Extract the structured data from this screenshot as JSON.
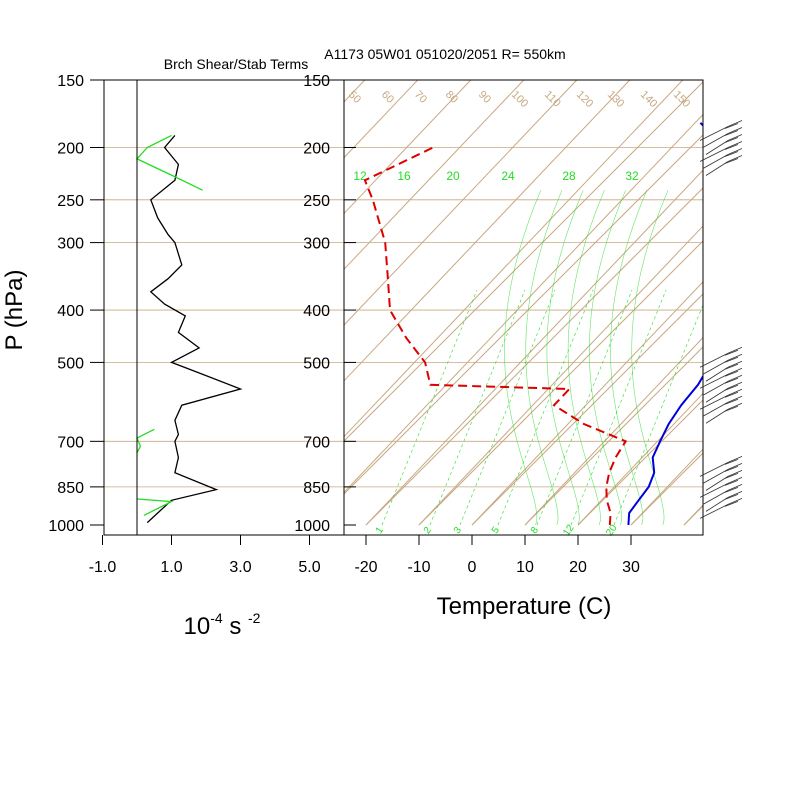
{
  "titles": {
    "left_panel": "Brch Shear/Stab Terms",
    "right_panel": "A1173 05W01 051020/2051 R= 550km"
  },
  "axes": {
    "pressure_label": "P (hPa)",
    "pressure_ticks": [
      "150",
      "200",
      "250",
      "300",
      "400",
      "500",
      "700",
      "850",
      "1000"
    ],
    "left_x_ticks": [
      "-1.0",
      "1.0",
      "3.0",
      "5.0"
    ],
    "left_x_unit": {
      "base": "10",
      "exp1": "-4",
      "mid": " s ",
      "exp2": "-2"
    },
    "temp_label": "Temperature (C)",
    "temp_ticks": [
      "-20",
      "-10",
      "0",
      "10",
      "20",
      "30"
    ]
  },
  "skewt_labels": {
    "dry_adiabat_theta_K": [
      "50",
      "60",
      "70",
      "80",
      "90",
      "100",
      "110",
      "120",
      "130",
      "140",
      "150"
    ],
    "moist_adiabat_C": [
      "12",
      "16",
      "20",
      "24",
      "28",
      "32"
    ],
    "mixing_ratio_gkg": [
      "1",
      "2",
      "3",
      "5",
      "8",
      "12",
      "20"
    ]
  },
  "colors": {
    "isopleth": "#c8a882",
    "moist": "#22dd22",
    "temperature": "#0000dd",
    "dewpoint": "#dd0000",
    "shear": "#22dd22",
    "stability": "#000000"
  },
  "chart_data": [
    {
      "type": "line",
      "title": "Brch Shear/Stab Terms",
      "y_axis": "pressure (hPa), log scale, 150 at top to 1000 at bottom",
      "xlim": [
        -1.0,
        5.0
      ],
      "series": [
        {
          "color": "#000000",
          "points": [
            [
              1.1,
              190
            ],
            [
              0.8,
              200
            ],
            [
              1.2,
              215
            ],
            [
              1.1,
              230
            ],
            [
              0.4,
              250
            ],
            [
              0.6,
              270
            ],
            [
              0.9,
              290
            ],
            [
              1.1,
              300
            ],
            [
              1.3,
              330
            ],
            [
              0.9,
              350
            ],
            [
              0.4,
              370
            ],
            [
              0.8,
              390
            ],
            [
              1.4,
              410
            ],
            [
              1.2,
              440
            ],
            [
              1.8,
              470
            ],
            [
              1.0,
              500
            ],
            [
              1.7,
              520
            ],
            [
              3.0,
              560
            ],
            [
              1.3,
              600
            ],
            [
              1.1,
              640
            ],
            [
              1.2,
              680
            ],
            [
              1.1,
              700
            ],
            [
              1.2,
              750
            ],
            [
              1.1,
              800
            ],
            [
              2.3,
              860
            ],
            [
              1.0,
              900
            ],
            [
              0.6,
              950
            ],
            [
              0.3,
              990
            ]
          ]
        },
        {
          "color": "#22dd22",
          "segments": [
            [
              [
                1.0,
                190
              ],
              [
                0.3,
                200
              ],
              [
                0.0,
                210
              ],
              [
                1.0,
                225
              ],
              [
                1.9,
                240
              ]
            ],
            [
              [
                0.5,
                665
              ],
              [
                0.0,
                690
              ],
              [
                0.1,
                715
              ],
              [
                0.0,
                735
              ]
            ],
            [
              [
                0.0,
                895
              ],
              [
                1.0,
                905
              ],
              [
                0.2,
                960
              ]
            ]
          ]
        }
      ]
    },
    {
      "type": "line",
      "title": "A1173 05W01 051020/2051 R= 550km",
      "xlabel": "Temperature (C)",
      "ylabel": "P (hPa)",
      "subtype": "skew-T log-p",
      "series": [
        {
          "name": "Temperature",
          "color": "#0000dd",
          "points": [
            [
              29.5,
              1000
            ],
            [
              27.5,
              950
            ],
            [
              27.0,
              900
            ],
            [
              26.5,
              850
            ],
            [
              25.0,
              800
            ],
            [
              22.0,
              750
            ],
            [
              20.5,
              700
            ],
            [
              19.0,
              650
            ],
            [
              18.0,
              600
            ],
            [
              17.5,
              550
            ],
            [
              16.0,
              500
            ],
            [
              11.0,
              450
            ],
            [
              8.5,
              400
            ],
            [
              2.0,
              350
            ],
            [
              -3.0,
              300
            ],
            [
              -10.0,
              250
            ],
            [
              -20.0,
              200
            ],
            [
              -29.0,
              180
            ]
          ]
        },
        {
          "name": "Dewpoint",
          "color": "#dd0000",
          "points": [
            [
              26.0,
              1000
            ],
            [
              24.0,
              950
            ],
            [
              21.0,
              900
            ],
            [
              18.5,
              850
            ],
            [
              16.5,
              800
            ],
            [
              15.0,
              750
            ],
            [
              14.0,
              700
            ],
            [
              3.0,
              650
            ],
            [
              -6.0,
              600
            ],
            [
              -6.0,
              560
            ],
            [
              -33.0,
              550
            ],
            [
              -38.0,
              500
            ],
            [
              -46.0,
              450
            ],
            [
              -54.0,
              400
            ],
            [
              -60.0,
              350
            ],
            [
              -67.0,
              300
            ],
            [
              -77.0,
              250
            ],
            [
              -82.0,
              230
            ],
            [
              -75.0,
              200
            ]
          ]
        }
      ]
    }
  ],
  "wind_barbs": [
    {
      "pressure_hPa": 200,
      "count": 6
    },
    {
      "pressure_hPa": 550,
      "count": 9
    },
    {
      "pressure_hPa": 850,
      "count": 7
    }
  ]
}
